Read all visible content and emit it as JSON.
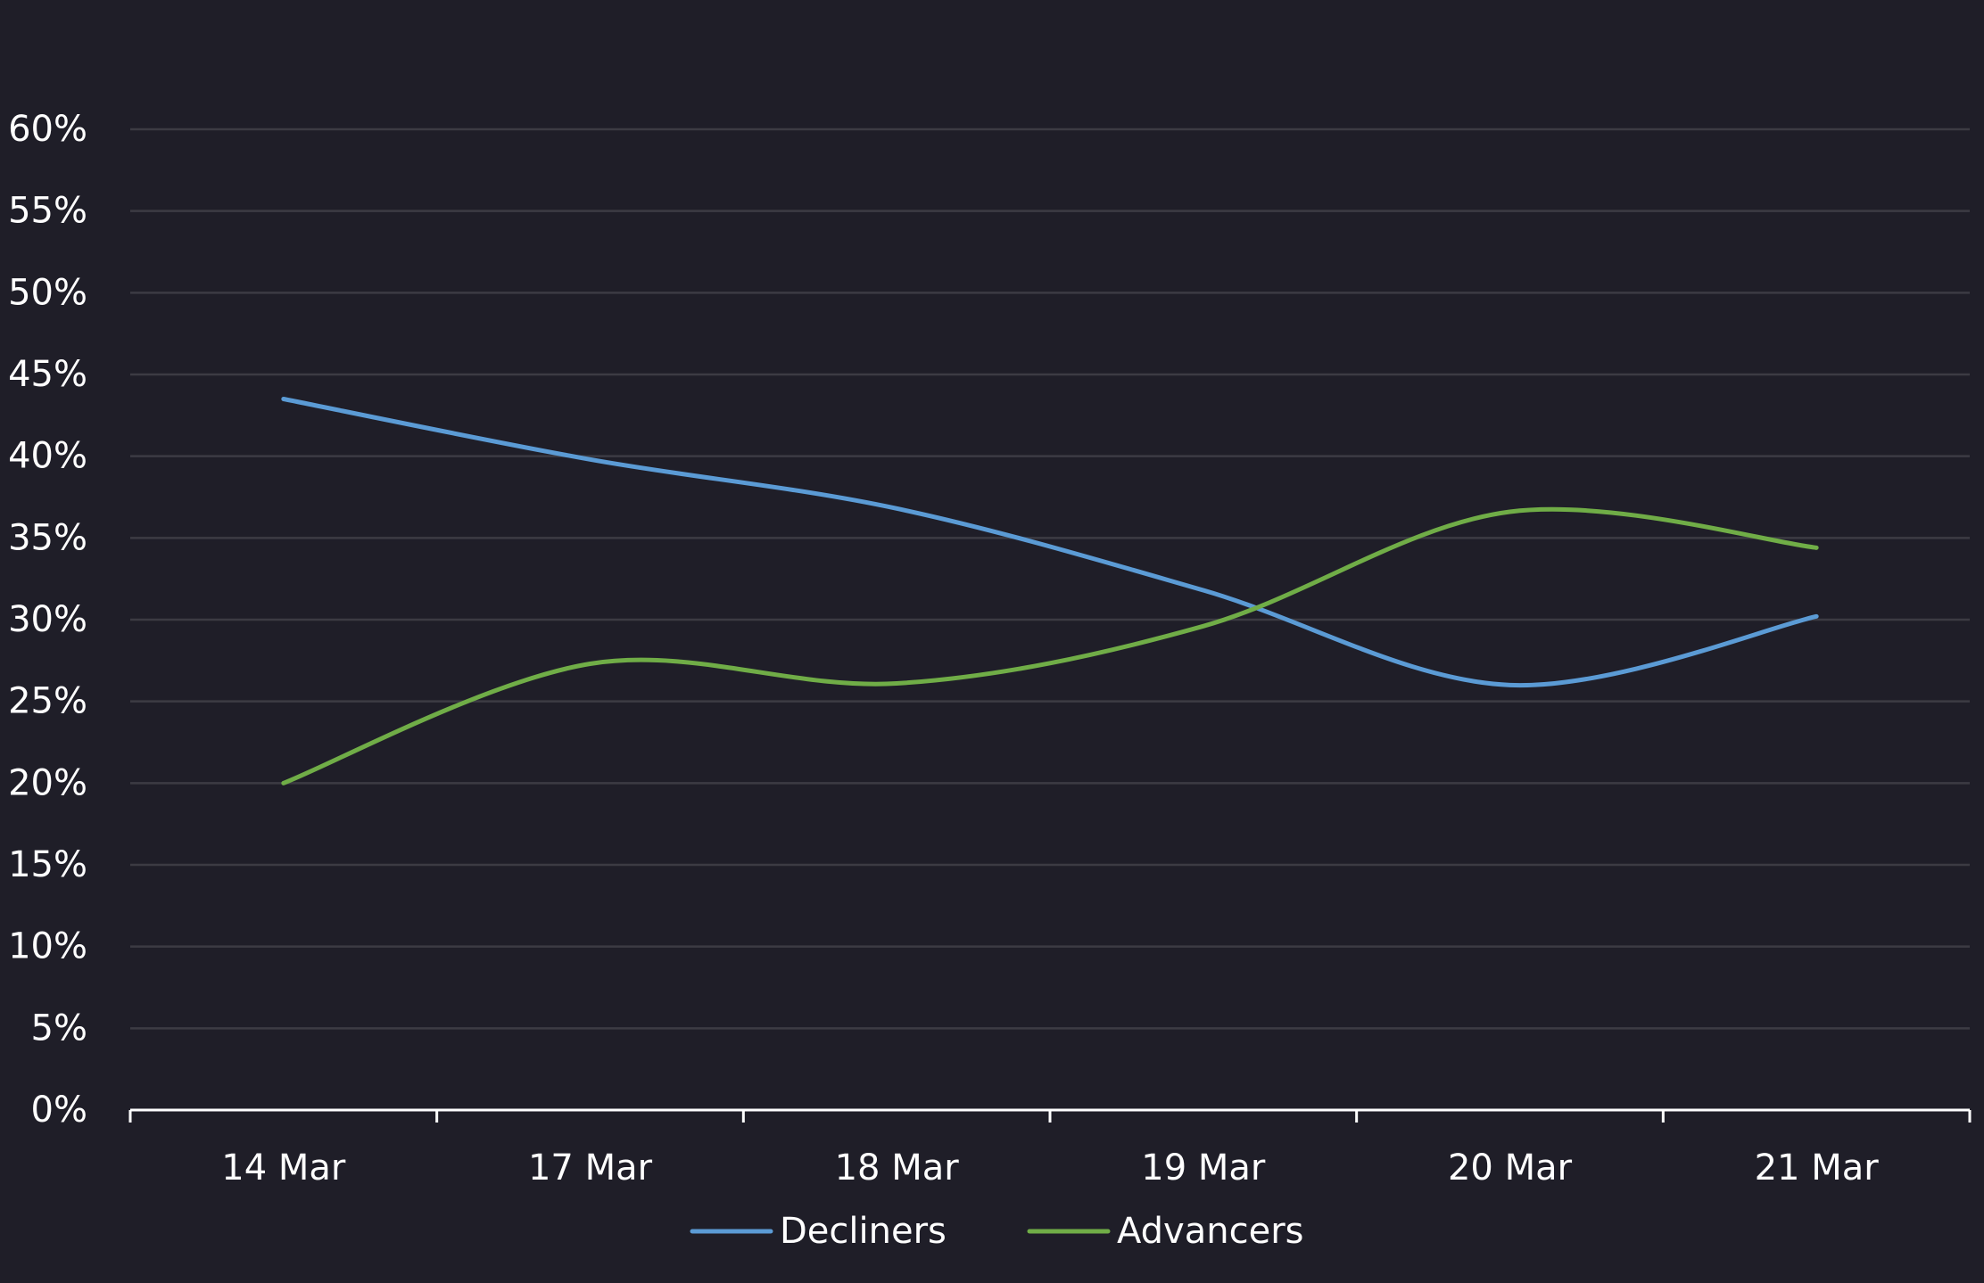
{
  "chart_data": {
    "type": "line",
    "title": "",
    "xlabel": "",
    "ylabel": "",
    "categories": [
      "14 Mar",
      "17 Mar",
      "18 Mar",
      "19 Mar",
      "20 Mar",
      "21 Mar"
    ],
    "ylim": [
      0,
      60
    ],
    "y_ticks": [
      0,
      5,
      10,
      15,
      20,
      25,
      30,
      35,
      40,
      45,
      50,
      55,
      60
    ],
    "y_tick_labels": [
      "0%",
      "5%",
      "10%",
      "15%",
      "20%",
      "25%",
      "30%",
      "35%",
      "40%",
      "45%",
      "50%",
      "55%",
      "60%"
    ],
    "y_unit": "%",
    "grid": true,
    "smooth": true,
    "legend_position": "bottom-center",
    "series": [
      {
        "name": "Decliners",
        "color": "#5b9bd5",
        "values": [
          43.5,
          39.8,
          36.8,
          31.8,
          26.0,
          30.2
        ]
      },
      {
        "name": "Advancers",
        "color": "#70ad47",
        "values": [
          20.0,
          27.3,
          26.1,
          29.6,
          36.6,
          34.4
        ]
      }
    ],
    "colors": {
      "background": "#1f1e28",
      "grid": "#3c3b43",
      "axis": "#ffffff",
      "text": "#ffffff"
    }
  }
}
